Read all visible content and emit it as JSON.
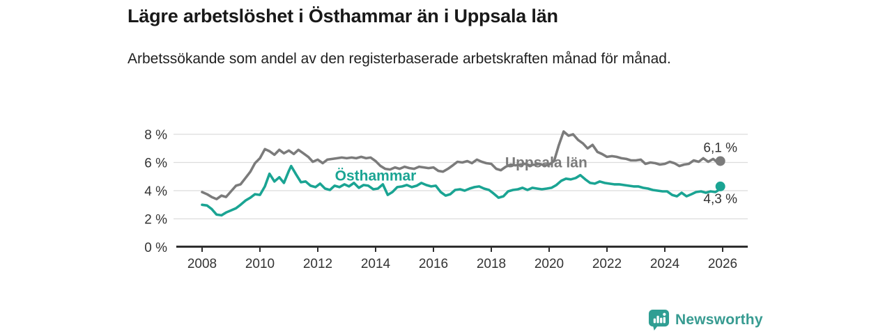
{
  "chart_data": {
    "type": "line",
    "title": "Lägre arbetslöshet i Östhammar än i Uppsala län",
    "subtitle": "Arbetssökande som andel av den registerbaserade arbetskraften månad för månad.",
    "x_axis": {
      "ticks": [
        2008,
        2010,
        2012,
        2014,
        2016,
        2018,
        2020,
        2022,
        2024,
        2026
      ],
      "tick_labels": [
        "2008",
        "2010",
        "2012",
        "2014",
        "2016",
        "2018",
        "2020",
        "2022",
        "2024",
        "2026"
      ],
      "range_years": [
        2007.1,
        2026.9
      ]
    },
    "y_axis": {
      "ticks": [
        0,
        2,
        4,
        6,
        8
      ],
      "tick_labels": [
        "0 %",
        "2 %",
        "4 %",
        "6 %",
        "8 %"
      ],
      "range": [
        0,
        8.8
      ],
      "grid": true
    },
    "legend": "inline-labels",
    "series": [
      {
        "name": "Uppsala län",
        "color": "#7b7b7b",
        "label_anchor": {
          "year": 2019.9,
          "value": 6.0
        },
        "latest": {
          "label": "6,1 %",
          "value": 6.1,
          "label_side": "above"
        },
        "points": [
          [
            2008.0,
            3.9
          ],
          [
            2008.17,
            3.75
          ],
          [
            2008.33,
            3.55
          ],
          [
            2008.5,
            3.4
          ],
          [
            2008.67,
            3.65
          ],
          [
            2008.83,
            3.55
          ],
          [
            2009.0,
            3.95
          ],
          [
            2009.17,
            4.35
          ],
          [
            2009.33,
            4.45
          ],
          [
            2009.5,
            4.9
          ],
          [
            2009.67,
            5.35
          ],
          [
            2009.83,
            5.95
          ],
          [
            2010.0,
            6.3
          ],
          [
            2010.17,
            6.95
          ],
          [
            2010.33,
            6.8
          ],
          [
            2010.5,
            6.55
          ],
          [
            2010.67,
            6.9
          ],
          [
            2010.83,
            6.65
          ],
          [
            2011.0,
            6.85
          ],
          [
            2011.17,
            6.6
          ],
          [
            2011.33,
            6.9
          ],
          [
            2011.5,
            6.65
          ],
          [
            2011.67,
            6.4
          ],
          [
            2011.83,
            6.05
          ],
          [
            2012.0,
            6.2
          ],
          [
            2012.17,
            5.95
          ],
          [
            2012.33,
            6.2
          ],
          [
            2012.5,
            6.25
          ],
          [
            2012.67,
            6.3
          ],
          [
            2012.83,
            6.35
          ],
          [
            2013.0,
            6.3
          ],
          [
            2013.17,
            6.35
          ],
          [
            2013.33,
            6.3
          ],
          [
            2013.5,
            6.4
          ],
          [
            2013.67,
            6.3
          ],
          [
            2013.83,
            6.35
          ],
          [
            2014.0,
            6.1
          ],
          [
            2014.17,
            5.75
          ],
          [
            2014.33,
            5.55
          ],
          [
            2014.5,
            5.5
          ],
          [
            2014.67,
            5.65
          ],
          [
            2014.83,
            5.55
          ],
          [
            2015.0,
            5.7
          ],
          [
            2015.17,
            5.6
          ],
          [
            2015.33,
            5.55
          ],
          [
            2015.5,
            5.7
          ],
          [
            2015.67,
            5.65
          ],
          [
            2015.83,
            5.6
          ],
          [
            2016.0,
            5.65
          ],
          [
            2016.17,
            5.4
          ],
          [
            2016.33,
            5.35
          ],
          [
            2016.5,
            5.55
          ],
          [
            2016.67,
            5.8
          ],
          [
            2016.83,
            6.05
          ],
          [
            2017.0,
            6.0
          ],
          [
            2017.17,
            6.1
          ],
          [
            2017.33,
            5.95
          ],
          [
            2017.5,
            6.2
          ],
          [
            2017.67,
            6.05
          ],
          [
            2017.83,
            5.95
          ],
          [
            2018.0,
            5.9
          ],
          [
            2018.17,
            5.55
          ],
          [
            2018.33,
            5.45
          ],
          [
            2018.5,
            5.7
          ],
          [
            2018.67,
            5.85
          ],
          [
            2018.83,
            5.8
          ],
          [
            2019.0,
            5.85
          ],
          [
            2019.17,
            5.9
          ],
          [
            2019.33,
            5.8
          ],
          [
            2019.5,
            5.85
          ],
          [
            2019.67,
            5.9
          ],
          [
            2019.83,
            5.8
          ],
          [
            2020.0,
            5.85
          ],
          [
            2020.17,
            6.1
          ],
          [
            2020.33,
            7.2
          ],
          [
            2020.5,
            8.2
          ],
          [
            2020.67,
            7.9
          ],
          [
            2020.83,
            8.0
          ],
          [
            2021.0,
            7.6
          ],
          [
            2021.17,
            7.35
          ],
          [
            2021.33,
            7.0
          ],
          [
            2021.5,
            7.25
          ],
          [
            2021.67,
            6.75
          ],
          [
            2021.83,
            6.6
          ],
          [
            2022.0,
            6.4
          ],
          [
            2022.17,
            6.45
          ],
          [
            2022.33,
            6.4
          ],
          [
            2022.5,
            6.3
          ],
          [
            2022.67,
            6.25
          ],
          [
            2022.83,
            6.15
          ],
          [
            2023.0,
            6.15
          ],
          [
            2023.17,
            6.2
          ],
          [
            2023.33,
            5.9
          ],
          [
            2023.5,
            6.0
          ],
          [
            2023.67,
            5.95
          ],
          [
            2023.83,
            5.85
          ],
          [
            2024.0,
            5.9
          ],
          [
            2024.17,
            6.05
          ],
          [
            2024.33,
            5.95
          ],
          [
            2024.5,
            5.75
          ],
          [
            2024.67,
            5.85
          ],
          [
            2024.83,
            5.9
          ],
          [
            2025.0,
            6.15
          ],
          [
            2025.17,
            6.05
          ],
          [
            2025.33,
            6.3
          ],
          [
            2025.5,
            6.05
          ],
          [
            2025.67,
            6.25
          ],
          [
            2025.83,
            6.0
          ],
          [
            2025.92,
            6.1
          ]
        ]
      },
      {
        "name": "Östhammar",
        "color": "#1aa493",
        "label_anchor": {
          "year": 2014.0,
          "value": 5.05
        },
        "latest": {
          "label": "4,3 %",
          "value": 4.3,
          "label_side": "below"
        },
        "points": [
          [
            2008.0,
            3.0
          ],
          [
            2008.17,
            2.95
          ],
          [
            2008.33,
            2.7
          ],
          [
            2008.5,
            2.3
          ],
          [
            2008.67,
            2.25
          ],
          [
            2008.83,
            2.45
          ],
          [
            2009.0,
            2.6
          ],
          [
            2009.17,
            2.75
          ],
          [
            2009.33,
            3.0
          ],
          [
            2009.5,
            3.3
          ],
          [
            2009.67,
            3.5
          ],
          [
            2009.83,
            3.75
          ],
          [
            2010.0,
            3.7
          ],
          [
            2010.17,
            4.3
          ],
          [
            2010.33,
            5.2
          ],
          [
            2010.5,
            4.65
          ],
          [
            2010.67,
            4.95
          ],
          [
            2010.83,
            4.55
          ],
          [
            2011.0,
            5.4
          ],
          [
            2011.08,
            5.75
          ],
          [
            2011.25,
            5.15
          ],
          [
            2011.42,
            4.6
          ],
          [
            2011.58,
            4.65
          ],
          [
            2011.75,
            4.35
          ],
          [
            2011.92,
            4.25
          ],
          [
            2012.08,
            4.5
          ],
          [
            2012.25,
            4.15
          ],
          [
            2012.42,
            4.05
          ],
          [
            2012.58,
            4.35
          ],
          [
            2012.75,
            4.25
          ],
          [
            2012.92,
            4.45
          ],
          [
            2013.08,
            4.3
          ],
          [
            2013.25,
            4.55
          ],
          [
            2013.42,
            4.2
          ],
          [
            2013.58,
            4.4
          ],
          [
            2013.75,
            4.35
          ],
          [
            2013.92,
            4.1
          ],
          [
            2014.08,
            4.15
          ],
          [
            2014.25,
            4.45
          ],
          [
            2014.42,
            3.7
          ],
          [
            2014.58,
            3.9
          ],
          [
            2014.75,
            4.25
          ],
          [
            2014.92,
            4.3
          ],
          [
            2015.08,
            4.4
          ],
          [
            2015.25,
            4.25
          ],
          [
            2015.42,
            4.35
          ],
          [
            2015.58,
            4.55
          ],
          [
            2015.75,
            4.4
          ],
          [
            2015.92,
            4.3
          ],
          [
            2016.08,
            4.35
          ],
          [
            2016.25,
            3.9
          ],
          [
            2016.42,
            3.65
          ],
          [
            2016.58,
            3.75
          ],
          [
            2016.75,
            4.05
          ],
          [
            2016.92,
            4.1
          ],
          [
            2017.08,
            4.0
          ],
          [
            2017.25,
            4.15
          ],
          [
            2017.42,
            4.25
          ],
          [
            2017.58,
            4.3
          ],
          [
            2017.75,
            4.15
          ],
          [
            2017.92,
            4.05
          ],
          [
            2018.08,
            3.8
          ],
          [
            2018.25,
            3.5
          ],
          [
            2018.42,
            3.6
          ],
          [
            2018.58,
            3.95
          ],
          [
            2018.75,
            4.05
          ],
          [
            2018.92,
            4.1
          ],
          [
            2019.08,
            4.2
          ],
          [
            2019.25,
            4.05
          ],
          [
            2019.42,
            4.2
          ],
          [
            2019.58,
            4.15
          ],
          [
            2019.75,
            4.1
          ],
          [
            2019.92,
            4.15
          ],
          [
            2020.08,
            4.2
          ],
          [
            2020.25,
            4.4
          ],
          [
            2020.42,
            4.7
          ],
          [
            2020.58,
            4.85
          ],
          [
            2020.75,
            4.8
          ],
          [
            2020.92,
            4.9
          ],
          [
            2021.08,
            5.1
          ],
          [
            2021.25,
            4.8
          ],
          [
            2021.42,
            4.55
          ],
          [
            2021.58,
            4.5
          ],
          [
            2021.75,
            4.65
          ],
          [
            2021.92,
            4.55
          ],
          [
            2022.08,
            4.5
          ],
          [
            2022.25,
            4.45
          ],
          [
            2022.42,
            4.45
          ],
          [
            2022.58,
            4.4
          ],
          [
            2022.75,
            4.35
          ],
          [
            2022.92,
            4.3
          ],
          [
            2023.08,
            4.3
          ],
          [
            2023.25,
            4.2
          ],
          [
            2023.42,
            4.15
          ],
          [
            2023.58,
            4.05
          ],
          [
            2023.75,
            4.0
          ],
          [
            2023.92,
            3.95
          ],
          [
            2024.08,
            3.95
          ],
          [
            2024.25,
            3.7
          ],
          [
            2024.42,
            3.6
          ],
          [
            2024.58,
            3.85
          ],
          [
            2024.75,
            3.6
          ],
          [
            2024.92,
            3.75
          ],
          [
            2025.08,
            3.9
          ],
          [
            2025.25,
            3.95
          ],
          [
            2025.42,
            3.85
          ],
          [
            2025.58,
            3.95
          ],
          [
            2025.75,
            3.9
          ],
          [
            2025.83,
            4.0
          ],
          [
            2025.92,
            4.3
          ]
        ]
      }
    ]
  },
  "branding": {
    "name": "Newsworthy",
    "color": "#379b91",
    "icon_color": "#2f9e93",
    "icon": "newsworthy-bars-speech-bubble"
  },
  "colors": {
    "background": "#ffffff",
    "grid": "#dcdcdc",
    "axis": "#2e2e2e",
    "tick_text": "#333333",
    "value_label_text": "#333333",
    "title_text": "#191919"
  }
}
